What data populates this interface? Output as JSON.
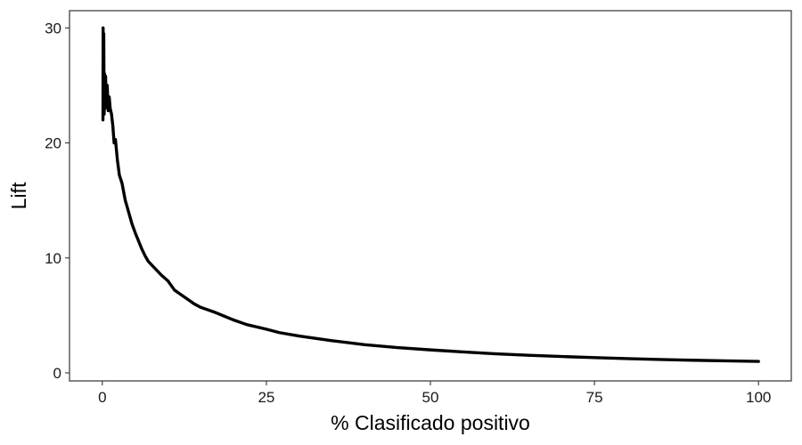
{
  "chart_data": {
    "type": "line",
    "title": "",
    "xlabel": "% Clasificado positivo",
    "ylabel": "Lift",
    "xlim": [
      -5,
      105
    ],
    "ylim": [
      -0.7,
      31.5
    ],
    "x_ticks": [
      0,
      25,
      50,
      75,
      100
    ],
    "y_ticks": [
      0,
      10,
      20,
      30
    ],
    "x_tick_labels": [
      "0",
      "25",
      "50",
      "75",
      "100"
    ],
    "y_tick_labels": [
      "0",
      "10",
      "20",
      "30"
    ],
    "grid": false,
    "legend": "none",
    "line_color": "#000000",
    "series": [
      {
        "x": [
          0.1,
          0.12,
          0.15,
          0.18,
          0.22,
          0.28,
          0.35,
          0.42,
          0.5,
          0.6,
          0.75,
          0.9,
          1.05,
          1.2,
          1.4,
          1.6,
          1.8,
          2.0,
          2.3,
          2.6,
          3.0,
          3.5,
          4.0,
          4.5,
          5.0,
          5.5,
          6.0,
          6.5,
          7.0,
          7.5,
          8.0,
          9.0,
          10,
          11,
          12,
          13,
          14,
          15,
          17,
          20,
          22,
          25,
          27,
          30,
          35,
          40,
          45,
          50,
          55,
          60,
          65,
          70,
          75,
          80,
          85,
          90,
          95,
          100
        ],
        "y": [
          22.0,
          30.0,
          27.0,
          24.0,
          29.5,
          22.5,
          26.0,
          23.0,
          25.8,
          23.5,
          25.0,
          22.8,
          24.0,
          23.0,
          22.5,
          21.5,
          20.0,
          20.3,
          18.5,
          17.2,
          16.5,
          15.0,
          14.0,
          13.0,
          12.2,
          11.5,
          10.8,
          10.2,
          9.7,
          9.4,
          9.1,
          8.5,
          8.0,
          7.2,
          6.8,
          6.4,
          6.0,
          5.7,
          5.3,
          4.6,
          4.2,
          3.8,
          3.5,
          3.2,
          2.8,
          2.45,
          2.2,
          2.0,
          1.82,
          1.66,
          1.53,
          1.42,
          1.33,
          1.24,
          1.16,
          1.1,
          1.05,
          1.0
        ]
      }
    ]
  }
}
